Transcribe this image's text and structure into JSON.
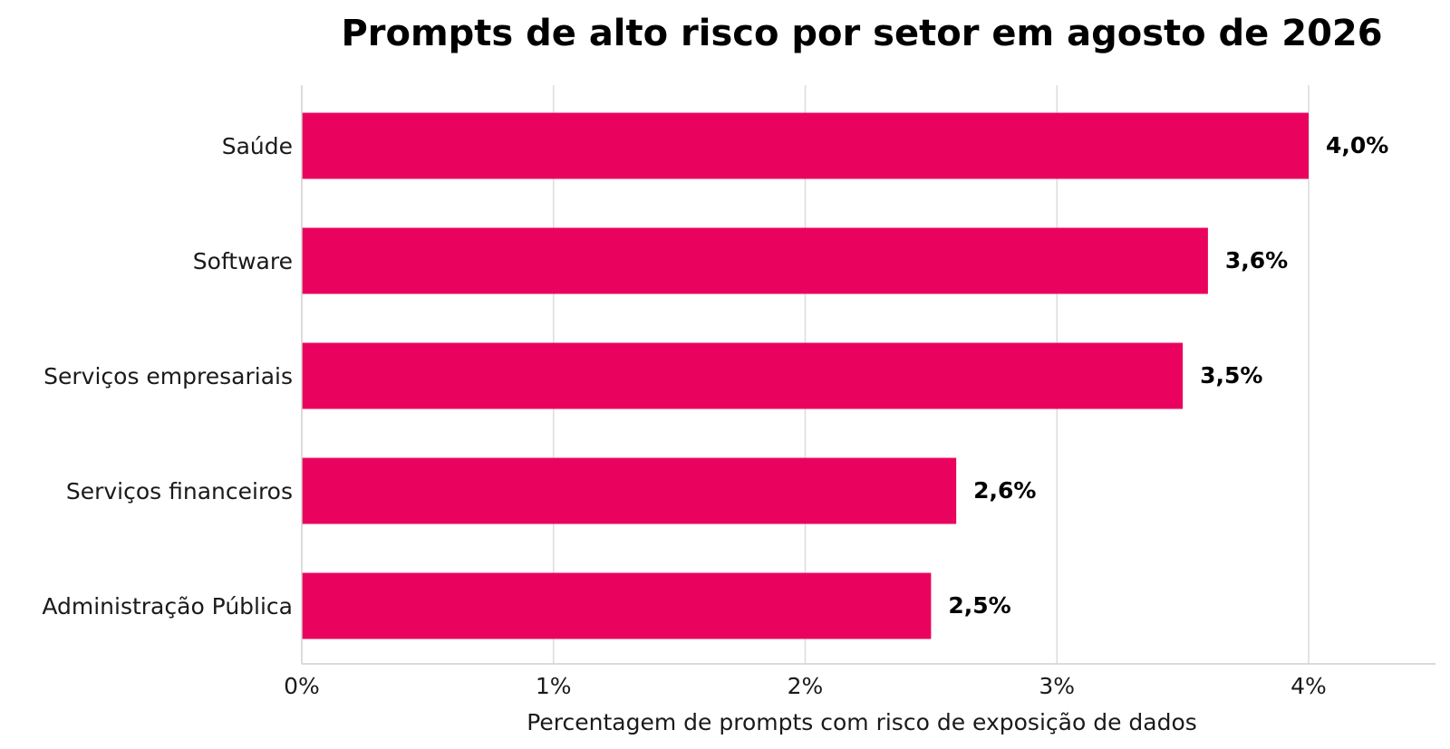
{
  "chart_data": {
    "type": "bar",
    "orientation": "horizontal",
    "title": "Prompts de alto risco por setor em agosto de 2026",
    "xlabel": "Percentagem de prompts com risco de exposição de dados",
    "ylabel": "",
    "categories": [
      "Saúde",
      "Software",
      "Serviços empresariais",
      "Serviços financeiros",
      "Administração Pública"
    ],
    "values": [
      4.0,
      3.6,
      3.5,
      2.6,
      2.5
    ],
    "value_labels": [
      "4,0%",
      "3,6%",
      "3,5%",
      "2,6%",
      "2,5%"
    ],
    "xlim": [
      0,
      4.5
    ],
    "xticks": [
      0,
      1,
      2,
      3,
      4
    ],
    "xtick_labels": [
      "0%",
      "1%",
      "2%",
      "3%",
      "4%"
    ],
    "grid": "vertical",
    "legend": "none",
    "bar_color": "#ea035e",
    "grid_color": "#dcdcdc",
    "axis_color": "#cfcfcf"
  }
}
